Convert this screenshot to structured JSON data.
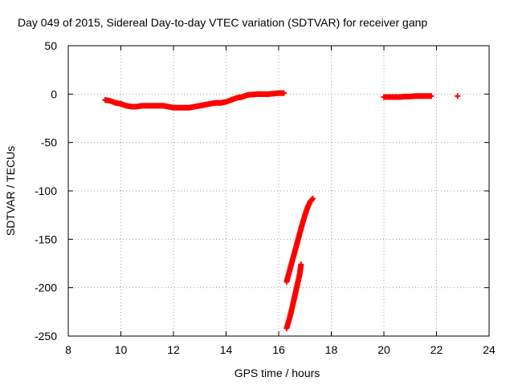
{
  "chart_data": {
    "type": "scatter",
    "title": "Day 049 of 2015, Sidereal Day-to-day VTEC variation (SDTVAR) for receiver ganp",
    "xlabel": "GPS time / hours",
    "ylabel": "SDTVAR / TECUs",
    "xlim": [
      8,
      24
    ],
    "ylim": [
      -250,
      50
    ],
    "xticks": [
      8,
      10,
      12,
      14,
      16,
      18,
      20,
      22,
      24
    ],
    "yticks": [
      50,
      0,
      -50,
      -100,
      -150,
      -200,
      -250
    ],
    "grid": true,
    "marker": "plus",
    "series_color": "#ff0000",
    "series": [
      {
        "name": "main-arc",
        "x": [
          9.4,
          9.6,
          9.8,
          10.0,
          10.2,
          10.4,
          10.6,
          10.8,
          11.0,
          11.2,
          11.4,
          11.6,
          11.8,
          12.0,
          12.2,
          12.4,
          12.6,
          12.8,
          13.0,
          13.2,
          13.4,
          13.6,
          13.8,
          14.0,
          14.2,
          14.4,
          14.6,
          14.8,
          15.0,
          15.2,
          15.4,
          15.6,
          15.8,
          16.0,
          16.2
        ],
        "y": [
          -6,
          -7,
          -9,
          -10,
          -12,
          -13,
          -13,
          -12,
          -12,
          -12,
          -12,
          -12,
          -13,
          -14,
          -14,
          -14,
          -14,
          -13,
          -12,
          -11,
          -10,
          -9,
          -9,
          -8,
          -6,
          -4,
          -3,
          -1,
          -0.5,
          0,
          0,
          0,
          0.5,
          1,
          1
        ]
      },
      {
        "name": "upper-descent",
        "x": [
          16.3,
          16.4,
          16.5,
          16.6,
          16.7,
          16.8,
          16.9,
          17.0,
          17.1,
          17.2,
          17.3
        ],
        "y": [
          -194,
          -184,
          -174,
          -164,
          -154,
          -144,
          -134,
          -125,
          -117,
          -111,
          -108
        ]
      },
      {
        "name": "lower-descent",
        "x": [
          16.3,
          16.4,
          16.5,
          16.6,
          16.7,
          16.8,
          16.85
        ],
        "y": [
          -242,
          -233,
          -222,
          -210,
          -198,
          -186,
          -176
        ]
      },
      {
        "name": "late-arc",
        "x": [
          20.0,
          20.2,
          20.4,
          20.6,
          20.8,
          21.0,
          21.2,
          21.4,
          21.6,
          21.8
        ],
        "y": [
          -3,
          -3,
          -3,
          -3,
          -2.5,
          -2.5,
          -2,
          -2,
          -2,
          -2
        ]
      },
      {
        "name": "isolated-point",
        "x": [
          22.8
        ],
        "y": [
          -2
        ]
      }
    ]
  }
}
